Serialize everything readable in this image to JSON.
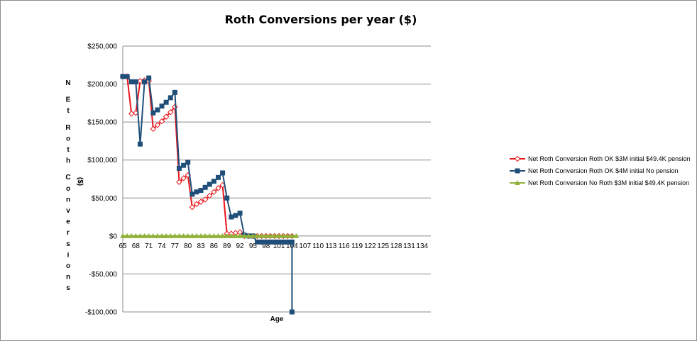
{
  "chart_data": {
    "type": "line",
    "title": "Roth Conversions per year ($)",
    "xlabel": "Age",
    "ylabel": "NEt Roth Conversions ($)",
    "ylabel_letters": [
      "N",
      "E",
      "t",
      "R",
      "o",
      "t",
      "h",
      "C",
      "o",
      "n",
      "v",
      "e",
      "r",
      "s",
      "i",
      "o",
      "n",
      "s"
    ],
    "ylabel_unit": [
      "(",
      "$",
      ")"
    ],
    "ylim": [
      -100000,
      250000
    ],
    "yticks": [
      250000,
      200000,
      150000,
      100000,
      50000,
      0,
      -50000,
      -100000
    ],
    "ytick_labels": [
      "$250,000",
      "$200,000",
      "$150,000",
      "$100,000",
      "$50,000",
      "$0",
      "-$50,000",
      "-$100,000"
    ],
    "xlim": [
      65,
      136
    ],
    "xticks": [
      65,
      68,
      71,
      74,
      77,
      80,
      83,
      86,
      89,
      92,
      95,
      98,
      101,
      104,
      107,
      110,
      113,
      116,
      119,
      122,
      125,
      128,
      131,
      134
    ],
    "xtick_labels": [
      "65",
      "68",
      "71",
      "74",
      "77",
      "80",
      "83",
      "86",
      "89",
      "92",
      "95",
      "98",
      "101",
      "104",
      "107",
      "110",
      "113",
      "116",
      "119",
      "122",
      "125",
      "128",
      "131",
      "134"
    ],
    "grid": "horizontal",
    "legend_position": "right",
    "series": [
      {
        "name": "Net Roth Conversion Roth OK $3M initial $49.4K pension",
        "color": "#e8161b",
        "marker": "diamond-open",
        "x": [
          65,
          66,
          67,
          68,
          69,
          70,
          71,
          72,
          73,
          74,
          75,
          76,
          77,
          78,
          79,
          80,
          81,
          82,
          83,
          84,
          85,
          86,
          87,
          88,
          89,
          90,
          91,
          92,
          93,
          94,
          95,
          96,
          97,
          98,
          99,
          100,
          101,
          102,
          103,
          104
        ],
        "values": [
          210000,
          210000,
          161000,
          162000,
          204000,
          205000,
          204000,
          141000,
          146000,
          151000,
          157000,
          163000,
          170000,
          71000,
          76000,
          80000,
          38000,
          42000,
          45000,
          48000,
          53000,
          58000,
          63000,
          67000,
          3000,
          3000,
          4000,
          5000,
          0,
          0,
          0,
          0,
          0,
          0,
          0,
          0,
          0,
          0,
          0,
          0
        ]
      },
      {
        "name": "Net Roth Conversion Roth OK $4M initial No pension",
        "color": "#1f4e79",
        "marker": "square",
        "x": [
          65,
          66,
          67,
          68,
          69,
          70,
          71,
          72,
          73,
          74,
          75,
          76,
          77,
          78,
          79,
          80,
          81,
          82,
          83,
          84,
          85,
          86,
          87,
          88,
          89,
          90,
          91,
          92,
          93,
          94,
          95,
          96,
          97,
          98,
          99,
          100,
          101,
          102,
          103,
          104,
          104
        ],
        "values": [
          210000,
          210000,
          203000,
          203000,
          121000,
          203000,
          208000,
          162000,
          166000,
          171000,
          176000,
          182000,
          189000,
          89000,
          93000,
          97000,
          55000,
          58000,
          60000,
          64000,
          68000,
          72000,
          77000,
          83000,
          50000,
          25000,
          27000,
          30000,
          1000,
          0,
          0,
          -8000,
          -8000,
          -8000,
          -8000,
          -8000,
          -8000,
          -8000,
          -8000,
          -8000,
          -100000
        ]
      },
      {
        "name": "Net Roth Conversion No Roth $3M initial $49.4K pension",
        "color": "#8fb23a",
        "marker": "triangle",
        "x": [
          65,
          66,
          67,
          68,
          69,
          70,
          71,
          72,
          73,
          74,
          75,
          76,
          77,
          78,
          79,
          80,
          81,
          82,
          83,
          84,
          85,
          86,
          87,
          88,
          89,
          90,
          91,
          92,
          93,
          94,
          95,
          96,
          97,
          98,
          99,
          100,
          101,
          102,
          103,
          104,
          105
        ],
        "values": [
          0,
          0,
          0,
          0,
          0,
          0,
          0,
          0,
          0,
          0,
          0,
          0,
          0,
          0,
          0,
          0,
          0,
          0,
          0,
          0,
          0,
          0,
          0,
          0,
          0,
          0,
          0,
          0,
          0,
          0,
          0,
          0,
          0,
          0,
          0,
          0,
          0,
          0,
          0,
          0,
          0
        ]
      }
    ]
  }
}
